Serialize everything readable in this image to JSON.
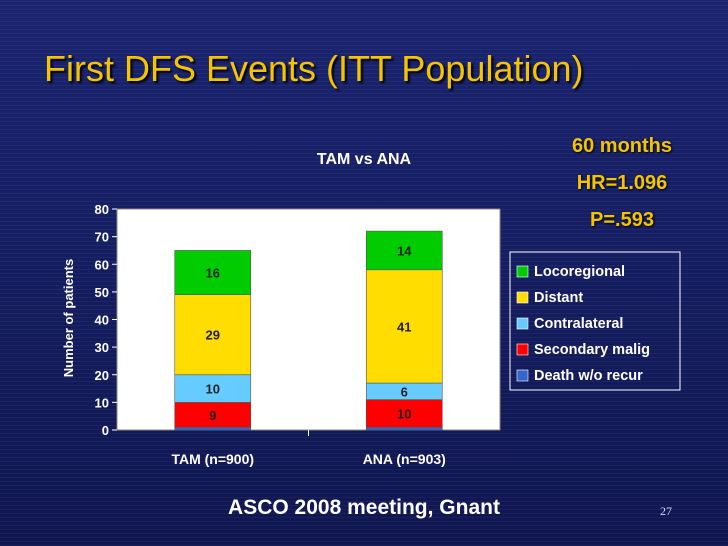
{
  "slide": {
    "title": "First DFS Events (ITT Population)",
    "stats": [
      "60 months",
      "HR=1.096",
      "P=.593"
    ],
    "footer": "ASCO 2008 meeting, Gnant",
    "page_number": "27"
  },
  "colors": {
    "Locoregional": "#00cc00",
    "Distant": "#ffdd00",
    "Contralateral": "#66ccff",
    "Secondary malig": "#ff0000",
    "Death w/o recur": "#3366cc",
    "plot_bg": "#ffffff",
    "title_yellow": "#f5c400"
  },
  "chart_data": {
    "type": "bar",
    "stacked": true,
    "title": "TAM vs ANA",
    "xlabel": "",
    "ylabel": "Number of patients",
    "ylim": [
      0,
      80
    ],
    "yticks": [
      0,
      10,
      20,
      30,
      40,
      50,
      60,
      70,
      80
    ],
    "grid": false,
    "legend_position": "right",
    "categories": [
      "TAM (n=900)",
      "ANA (n=903)"
    ],
    "series": [
      {
        "name": "Death w/o recur",
        "values": [
          1,
          1
        ],
        "labels": [
          "",
          ""
        ]
      },
      {
        "name": "Secondary malig",
        "values": [
          9,
          10
        ],
        "labels": [
          "9",
          "10"
        ]
      },
      {
        "name": "Contralateral",
        "values": [
          10,
          6
        ],
        "labels": [
          "10",
          "6"
        ]
      },
      {
        "name": "Distant",
        "values": [
          29,
          41
        ],
        "labels": [
          "29",
          "41"
        ]
      },
      {
        "name": "Locoregional",
        "values": [
          16,
          14
        ],
        "labels": [
          "16",
          "14"
        ]
      }
    ],
    "legend_order": [
      "Locoregional",
      "Distant",
      "Contralateral",
      "Secondary malig",
      "Death w/o recur"
    ]
  }
}
